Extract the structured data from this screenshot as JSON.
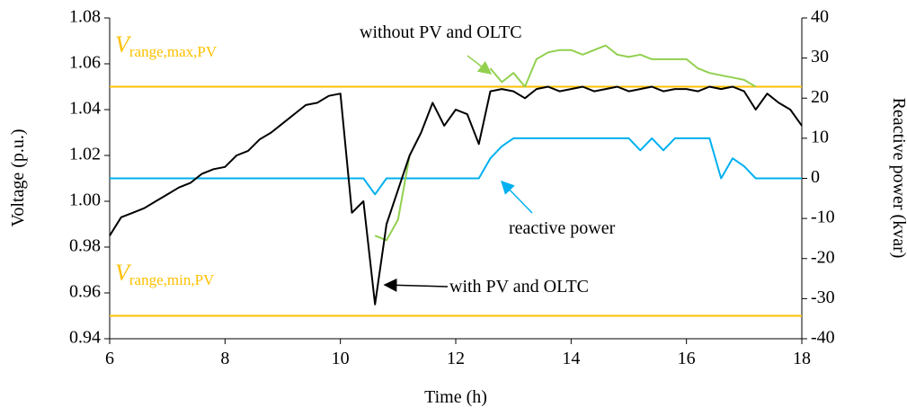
{
  "chart_data": {
    "type": "line",
    "xlabel": "Time (h)",
    "ylabel": "Voltage (p.u.)",
    "y2label": "Reactive power (kvar)",
    "xlim": [
      6,
      18
    ],
    "xticks": [
      6,
      8,
      10,
      12,
      14,
      16,
      18
    ],
    "ylim": [
      0.94,
      1.08
    ],
    "yticks": [
      0.94,
      0.96,
      0.98,
      {
        "value": 1,
        "label": "1.00"
      },
      1.02,
      1.04,
      1.06,
      1.08
    ],
    "y2lim": [
      -40,
      40
    ],
    "y2ticks": [
      -40,
      -30,
      -20,
      -10,
      0,
      10,
      20,
      30,
      40
    ],
    "x": [
      6.0,
      6.2,
      6.4,
      6.6,
      6.8,
      7.0,
      7.2,
      7.4,
      7.6,
      7.8,
      8.0,
      8.2,
      8.4,
      8.6,
      8.8,
      9.0,
      9.2,
      9.4,
      9.6,
      9.8,
      10.0,
      10.2,
      10.4,
      10.6,
      10.8,
      11.0,
      11.2,
      11.4,
      11.6,
      11.8,
      12.0,
      12.2,
      12.4,
      12.6,
      12.8,
      13.0,
      13.2,
      13.4,
      13.6,
      13.8,
      14.0,
      14.2,
      14.4,
      14.6,
      14.8,
      15.0,
      15.2,
      15.4,
      15.6,
      15.8,
      16.0,
      16.2,
      16.4,
      16.6,
      16.8,
      17.0,
      17.2,
      17.4,
      17.6,
      17.8,
      18.0
    ],
    "series": [
      {
        "name": "with PV and OLTC",
        "color": "#000000",
        "values": [
          0.985,
          0.993,
          0.995,
          0.997,
          1.0,
          1.003,
          1.006,
          1.008,
          1.012,
          1.014,
          1.015,
          1.02,
          1.022,
          1.027,
          1.03,
          1.034,
          1.038,
          1.042,
          1.043,
          1.046,
          1.047,
          0.995,
          1.0,
          0.955,
          0.99,
          1.005,
          1.02,
          1.03,
          1.043,
          1.033,
          1.04,
          1.038,
          1.025,
          1.048,
          1.049,
          1.048,
          1.045,
          1.049,
          1.05,
          1.048,
          1.049,
          1.05,
          1.048,
          1.049,
          1.05,
          1.048,
          1.049,
          1.05,
          1.048,
          1.049,
          1.049,
          1.048,
          1.05,
          1.049,
          1.05,
          1.048,
          1.04,
          1.047,
          1.043,
          1.04,
          1.033
        ]
      },
      {
        "name": "without PV and OLTC",
        "color": "#92d050",
        "values": [
          null,
          null,
          null,
          null,
          null,
          null,
          null,
          null,
          null,
          null,
          null,
          null,
          null,
          null,
          null,
          null,
          null,
          null,
          null,
          null,
          null,
          null,
          null,
          0.985,
          0.983,
          0.992,
          1.02,
          null,
          null,
          null,
          null,
          null,
          null,
          1.058,
          1.052,
          1.056,
          1.05,
          1.062,
          1.065,
          1.066,
          1.066,
          1.064,
          1.066,
          1.068,
          1.064,
          1.063,
          1.064,
          1.062,
          1.062,
          1.062,
          1.062,
          1.058,
          1.056,
          1.055,
          1.054,
          1.053,
          1.05,
          null,
          null,
          null,
          null
        ]
      },
      {
        "name": "reactive power",
        "color": "#00b0f0",
        "axis": "y2",
        "values": [
          0,
          0,
          0,
          0,
          0,
          0,
          0,
          0,
          0,
          0,
          0,
          0,
          0,
          0,
          0,
          0,
          0,
          0,
          0,
          0,
          0,
          0,
          0,
          -4,
          0,
          0,
          0,
          0,
          0,
          0,
          0,
          0,
          0,
          5,
          8,
          10,
          10,
          10,
          10,
          10,
          10,
          10,
          10,
          10,
          10,
          10,
          7,
          10,
          7,
          10,
          10,
          10,
          10,
          0,
          5,
          3,
          0,
          0,
          0,
          0,
          0
        ]
      }
    ],
    "reference_lines": [
      {
        "value": 1.05,
        "color": "#ffc000",
        "label": {
          "symbol": "V",
          "subscript": "range,max,PV"
        }
      },
      {
        "value": 0.95,
        "color": "#ffc000",
        "label": {
          "symbol": "V",
          "subscript": "range,min,PV"
        }
      }
    ]
  }
}
